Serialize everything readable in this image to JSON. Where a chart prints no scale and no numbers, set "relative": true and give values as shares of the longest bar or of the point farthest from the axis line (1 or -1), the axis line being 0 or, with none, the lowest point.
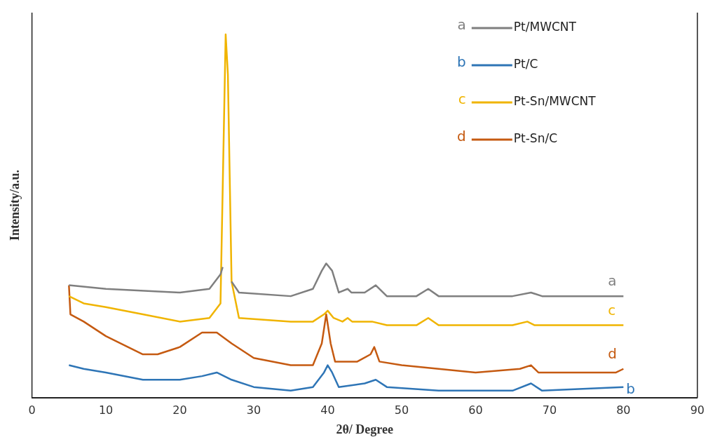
{
  "chart_data": {
    "type": "line",
    "relative": true,
    "xlabel": "2θ/ Degree",
    "ylabel": "Intensity/a.u.",
    "xlim": [
      0,
      90
    ],
    "xticks": [
      0,
      10,
      20,
      30,
      40,
      50,
      60,
      70,
      80,
      90
    ],
    "legend": "top right",
    "grid": false,
    "marker": "none",
    "line_style": "solid",
    "series": [
      {
        "name": "Pt/MWCNT",
        "color": "#7f7f7f",
        "x": [
          5,
          10,
          20,
          24,
          25.5,
          25.8,
          26.3,
          27,
          28,
          35,
          38,
          39.2,
          39.8,
          40.6,
          41.5,
          42.7,
          43.2,
          45,
          46.5,
          48,
          52,
          53.6,
          55,
          65,
          67.5,
          69,
          78,
          80
        ],
        "values": [
          0.31,
          0.3,
          0.29,
          0.3,
          0.34,
          0.36,
          null,
          0.32,
          0.29,
          0.28,
          0.3,
          0.35,
          0.37,
          0.35,
          0.29,
          0.3,
          0.29,
          0.29,
          0.31,
          0.28,
          0.28,
          0.3,
          0.28,
          0.28,
          0.29,
          0.28,
          0.28,
          0.28
        ]
      },
      {
        "name": "Pt/C",
        "color": "#2e75b6",
        "x": [
          5,
          7,
          10,
          15,
          20,
          23,
          25,
          27,
          30,
          35,
          38,
          39.5,
          40,
          40.6,
          41.5,
          45,
          46.5,
          48,
          55,
          65,
          67.5,
          69,
          80
        ],
        "values": [
          0.09,
          0.08,
          0.07,
          0.05,
          0.05,
          0.06,
          0.07,
          0.05,
          0.03,
          0.02,
          0.03,
          0.07,
          0.09,
          0.07,
          0.03,
          0.04,
          0.05,
          0.03,
          0.02,
          0.02,
          0.04,
          0.02,
          0.03
        ]
      },
      {
        "name": "Pt-Sn/MWCNT",
        "color": "#f0b400",
        "x": [
          5,
          7,
          10,
          15,
          20,
          24,
          25.5,
          26,
          26.2,
          26.5,
          27,
          28,
          35,
          38,
          39.5,
          40,
          40.8,
          42,
          42.7,
          43.3,
          46,
          48,
          52,
          53.6,
          55,
          65,
          67,
          68,
          78,
          80
        ],
        "values": [
          0.28,
          0.26,
          0.25,
          0.23,
          0.21,
          0.22,
          0.26,
          0.79,
          1,
          0.89,
          0.32,
          0.22,
          0.21,
          0.21,
          0.23,
          0.24,
          0.22,
          0.21,
          0.22,
          0.21,
          0.21,
          0.2,
          0.2,
          0.22,
          0.2,
          0.2,
          0.21,
          0.2,
          0.2,
          0.2
        ]
      },
      {
        "name": "Pt-Sn/C",
        "color": "#c55a11",
        "x": [
          5,
          5.2,
          7,
          10,
          15,
          17,
          20,
          23,
          25,
          27,
          30,
          35,
          38,
          39.2,
          39.8,
          40.4,
          41,
          44,
          45.8,
          46.3,
          47,
          50,
          60,
          66,
          67.5,
          68.5,
          79,
          80
        ],
        "values": [
          0.31,
          0.23,
          0.21,
          0.17,
          0.12,
          0.12,
          0.14,
          0.18,
          0.18,
          0.15,
          0.11,
          0.09,
          0.09,
          0.15,
          0.23,
          0.15,
          0.1,
          0.1,
          0.12,
          0.14,
          0.1,
          0.09,
          0.07,
          0.08,
          0.09,
          0.07,
          0.07,
          0.08
        ]
      }
    ],
    "annotations": [
      "a",
      "b",
      "c",
      "d"
    ]
  }
}
